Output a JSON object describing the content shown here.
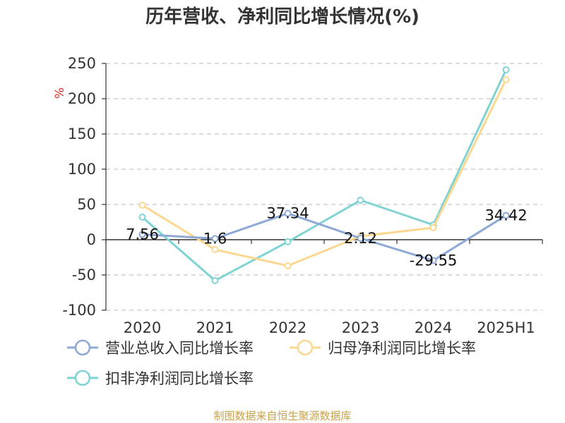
{
  "chart_data": {
    "type": "line",
    "title": "历年营收、净利同比增长情况(%)",
    "ylabel": "%",
    "categories": [
      "2020",
      "2021",
      "2022",
      "2023",
      "2024",
      "2025H1"
    ],
    "ylim": [
      -100,
      250
    ],
    "yticks": [
      250,
      200,
      150,
      100,
      50,
      0,
      -50,
      -100
    ],
    "grid": true,
    "legend_position": "bottom",
    "series": [
      {
        "name": "营业总收入同比增长率",
        "color": "#8fa9d6",
        "values": [
          7.56,
          1.6,
          37.34,
          2.12,
          -29.55,
          34.42
        ],
        "labels": [
          "7.56",
          "1.6",
          "37.34",
          "2.12",
          "-29.55",
          "34.42"
        ]
      },
      {
        "name": "归母净利润同比增长率",
        "color": "#fbd78f",
        "values": [
          49,
          -14,
          -37,
          5,
          17,
          227
        ],
        "labels": []
      },
      {
        "name": "扣非净利润同比增长率",
        "color": "#7fd3d3",
        "values": [
          32,
          -58,
          -3,
          56,
          21,
          241
        ],
        "labels": []
      }
    ],
    "source": "制图数据来自恒生聚源数据库"
  }
}
